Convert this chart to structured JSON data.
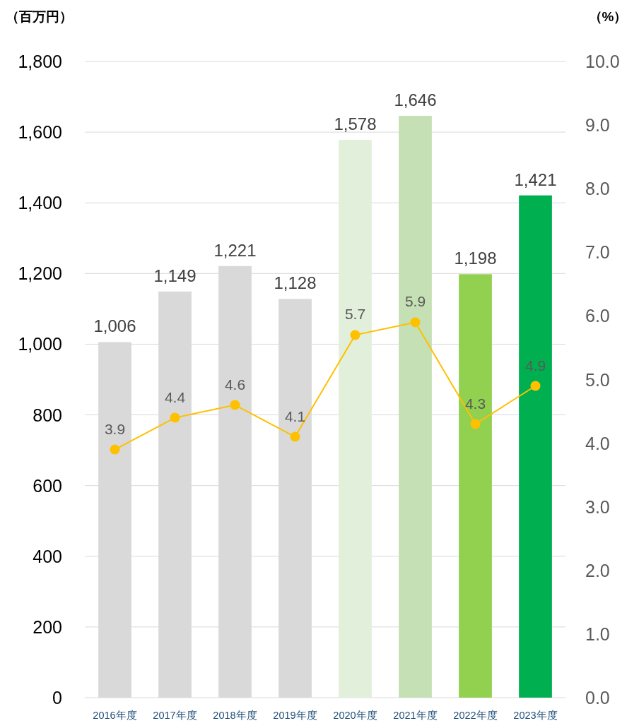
{
  "chart_data": {
    "type": "bar",
    "ylabel": "（百万円）",
    "y2label": "（%）",
    "categories": [
      "2016年度",
      "2017年度",
      "2018年度",
      "2019年度",
      "2020年度",
      "2021年度",
      "2022年度",
      "2023年度"
    ],
    "series": [
      {
        "colors": [
          "#d9d9d9",
          "#d9d9d9",
          "#d9d9d9",
          "#d9d9d9",
          "#e2efda",
          "#c5e0b4",
          "#92d050",
          "#00b050"
        ],
        "values": [
          1006,
          1149,
          1221,
          1128,
          1578,
          1646,
          1198,
          1421
        ],
        "value_labels": [
          "1,006",
          "1,149",
          "1,221",
          "1,128",
          "1,578",
          "1,646",
          "1,198",
          "1,421"
        ]
      },
      {
        "type": "line",
        "axis": "y2",
        "color": "#ffc000",
        "marker": "circle",
        "values": [
          3.9,
          4.4,
          4.6,
          4.1,
          5.7,
          5.9,
          4.3,
          4.9
        ]
      }
    ],
    "ylim": [
      0,
      1800
    ],
    "yticks": [
      0,
      200,
      400,
      600,
      800,
      {
        "value": 1000,
        "label": "1,000"
      },
      {
        "value": 1200,
        "label": "1,200"
      },
      {
        "value": 1400,
        "label": "1,400"
      },
      {
        "value": 1600,
        "label": "1,600"
      },
      {
        "value": 1800,
        "label": "1,800"
      }
    ],
    "y2lim": [
      0,
      10
    ],
    "y2ticks": [
      {
        "value": 0,
        "label": "0.0"
      },
      {
        "value": 1,
        "label": "1.0"
      },
      {
        "value": 2,
        "label": "2.0"
      },
      {
        "value": 3,
        "label": "3.0"
      },
      {
        "value": 4,
        "label": "4.0"
      },
      {
        "value": 5,
        "label": "5.0"
      },
      {
        "value": 6,
        "label": "6.0"
      },
      {
        "value": 7,
        "label": "7.0"
      },
      {
        "value": 8,
        "label": "8.0"
      },
      {
        "value": 9,
        "label": "9.0"
      },
      {
        "value": 10,
        "label": "10.0"
      }
    ],
    "grid": "y",
    "data_labels": true
  }
}
